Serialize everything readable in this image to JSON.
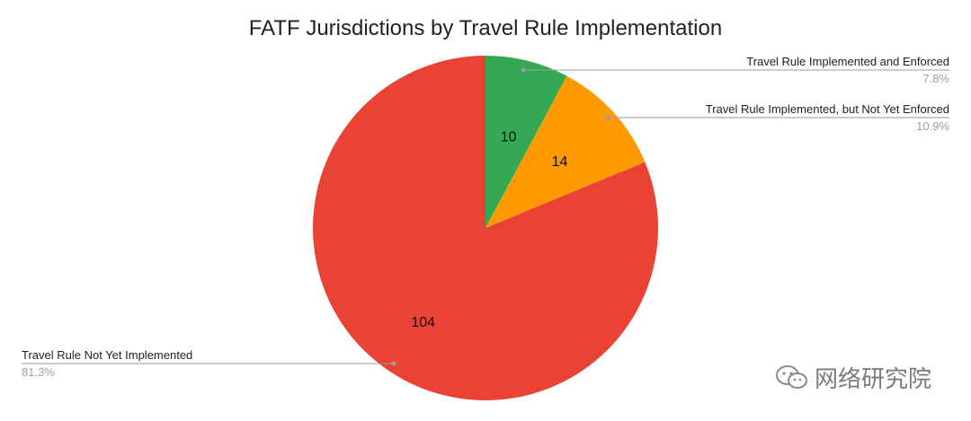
{
  "chart_data": {
    "type": "pie",
    "title": "FATF Jurisdictions by Travel Rule Implementation",
    "slices": [
      {
        "label": "Travel Rule Implemented and Enforced",
        "value": 10,
        "percent": "7.8%",
        "color": "#34a853"
      },
      {
        "label": "Travel Rule Implemented, but Not Yet Enforced",
        "value": 14,
        "percent": "10.9%",
        "color": "#ff9900"
      },
      {
        "label": "Travel Rule Not Yet Implemented",
        "value": 104,
        "percent": "81.3%",
        "color": "#ea4335"
      }
    ],
    "legend": "callout-labels"
  },
  "watermark": {
    "text": "网络研究院",
    "icon": "wechat-icon"
  }
}
